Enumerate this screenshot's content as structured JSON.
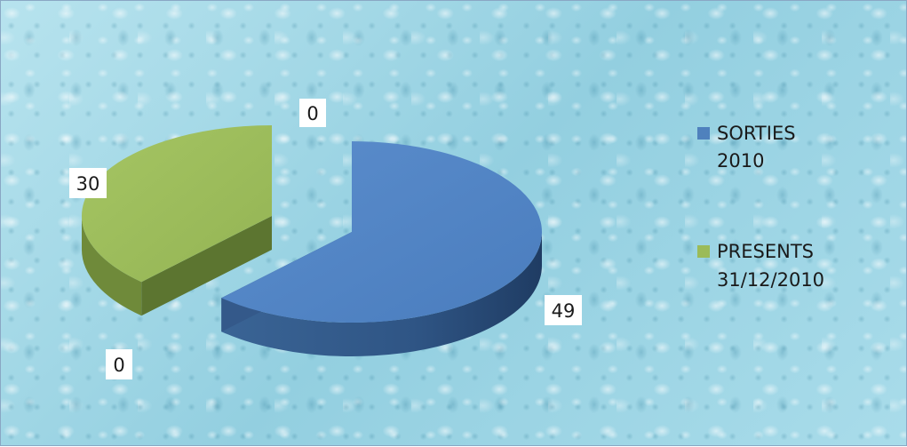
{
  "chart_data": {
    "type": "pie",
    "style": "3d-exploded",
    "slices": [
      {
        "label": "SORTIES 2010",
        "value": 49,
        "color": "#4f81bd",
        "shown": true
      },
      {
        "label": "PRESENTS 31/12/2010",
        "value": 30,
        "color": "#9bbb59",
        "shown": true
      }
    ],
    "data_labels": [
      "0",
      "30",
      "49",
      "0"
    ],
    "legend": {
      "position": "right",
      "items": [
        {
          "lines": [
            "SORTIES",
            "2010"
          ],
          "color": "#4f81bd"
        },
        {
          "lines": [
            "PRESENTS",
            "31/12/2010"
          ],
          "color": "#9bbb59"
        }
      ]
    },
    "background": "water-drops",
    "background_color": "#9fd6e4"
  }
}
